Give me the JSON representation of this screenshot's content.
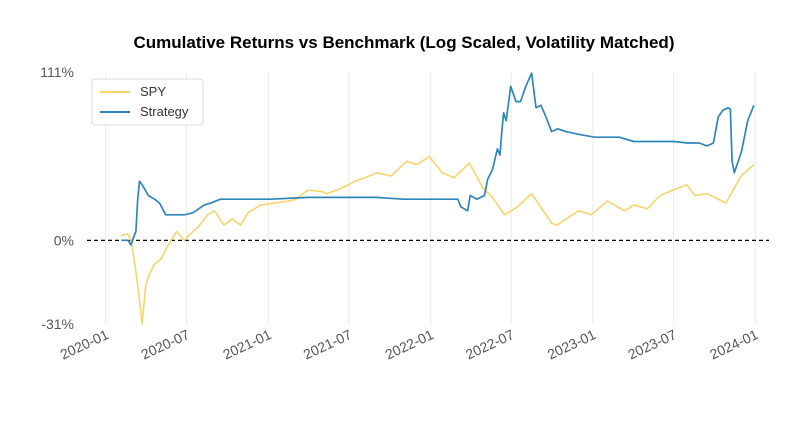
{
  "chart_data": {
    "type": "line",
    "title": "Cumulative Returns vs Benchmark (Log Scaled, Volatility Matched)",
    "xlabel": "",
    "ylabel": "",
    "y_scale": "log",
    "ylim": [
      -31,
      111
    ],
    "y_ticks": [
      {
        "value": 111,
        "label": "111%"
      },
      {
        "value": 0,
        "label": "0%"
      },
      {
        "value": -31,
        "label": "-31%"
      }
    ],
    "x_ticks": [
      "2020-01",
      "2020-07",
      "2021-01",
      "2021-07",
      "2022-01",
      "2022-07",
      "2023-01",
      "2023-07",
      "2024-01"
    ],
    "xlim": [
      "2019-11-20",
      "2024-02-01"
    ],
    "grid": "vertical",
    "baseline": 0,
    "legend_position": "top-left",
    "colors": {
      "SPY": "#f7d56a",
      "Strategy": "#2e86b9",
      "baseline": "#000000"
    },
    "series": [
      {
        "name": "SPY",
        "x": [
          "2020-02-05",
          "2020-02-19",
          "2020-02-27",
          "2020-03-09",
          "2020-03-16",
          "2020-03-23",
          "2020-03-31",
          "2020-04-08",
          "2020-04-20",
          "2020-05-04",
          "2020-05-18",
          "2020-06-08",
          "2020-06-26",
          "2020-07-10",
          "2020-07-27",
          "2020-08-17",
          "2020-09-02",
          "2020-09-23",
          "2020-10-12",
          "2020-10-30",
          "2020-11-16",
          "2020-12-15",
          "2021-01-15",
          "2021-02-15",
          "2021-03-04",
          "2021-03-31",
          "2021-05-03",
          "2021-05-12",
          "2021-06-15",
          "2021-07-15",
          "2021-08-16",
          "2021-09-02",
          "2021-10-04",
          "2021-11-08",
          "2021-12-01",
          "2021-12-29",
          "2022-01-27",
          "2022-02-23",
          "2022-03-29",
          "2022-04-29",
          "2022-05-20",
          "2022-06-16",
          "2022-07-15",
          "2022-08-16",
          "2022-09-30",
          "2022-10-12",
          "2022-11-30",
          "2022-12-28",
          "2023-02-02",
          "2023-03-13",
          "2023-04-03",
          "2023-05-03",
          "2023-06-01",
          "2023-06-30",
          "2023-07-31",
          "2023-08-18",
          "2023-09-15",
          "2023-10-27",
          "2023-11-30",
          "2023-12-29"
        ],
        "values": [
          2,
          3,
          0,
          -13,
          -22,
          -31,
          -18,
          -14,
          -10,
          -8,
          -3,
          4,
          0,
          3,
          6,
          12,
          14,
          7,
          10,
          7,
          13,
          17,
          18,
          19,
          20,
          25,
          24,
          23,
          26,
          30,
          33,
          35,
          33,
          42,
          40,
          45,
          35,
          32,
          41,
          26,
          21,
          12,
          16,
          23,
          8,
          7,
          14,
          12,
          19,
          14,
          17,
          15,
          22,
          25,
          28,
          22,
          23,
          18,
          33,
          40
        ]
      },
      {
        "name": "Strategy",
        "x": [
          "2020-02-05",
          "2020-02-20",
          "2020-02-27",
          "2020-03-05",
          "2020-03-09",
          "2020-03-13",
          "2020-03-17",
          "2020-03-23",
          "2020-04-06",
          "2020-04-20",
          "2020-05-01",
          "2020-05-15",
          "2020-06-05",
          "2020-06-26",
          "2020-07-15",
          "2020-08-10",
          "2020-08-25",
          "2020-09-15",
          "2020-10-15",
          "2020-12-01",
          "2021-01-04",
          "2021-04-01",
          "2021-06-01",
          "2021-09-01",
          "2021-11-01",
          "2022-01-03",
          "2022-03-03",
          "2022-03-10",
          "2022-03-25",
          "2022-03-31",
          "2022-04-15",
          "2022-05-02",
          "2022-05-09",
          "2022-05-20",
          "2022-05-31",
          "2022-06-06",
          "2022-06-10",
          "2022-06-14",
          "2022-06-20",
          "2022-06-30",
          "2022-07-12",
          "2022-07-22",
          "2022-08-03",
          "2022-08-16",
          "2022-08-26",
          "2022-09-06",
          "2022-09-16",
          "2022-09-30",
          "2022-10-14",
          "2022-11-01",
          "2022-12-01",
          "2023-01-05",
          "2023-03-01",
          "2023-04-03",
          "2023-06-01",
          "2023-07-03",
          "2023-08-01",
          "2023-08-28",
          "2023-09-15",
          "2023-09-29",
          "2023-10-10",
          "2023-10-20",
          "2023-11-01",
          "2023-11-06",
          "2023-11-10",
          "2023-11-15",
          "2023-12-01",
          "2023-12-15",
          "2023-12-29"
        ],
        "values": [
          0,
          0,
          -2,
          2,
          4,
          20,
          30,
          28,
          22,
          20,
          18,
          12,
          12,
          12,
          13,
          17,
          18,
          20,
          20,
          20,
          20,
          21,
          21,
          21,
          20,
          20,
          20,
          16,
          14,
          22,
          20,
          22,
          31,
          37,
          50,
          46,
          62,
          76,
          70,
          98,
          85,
          85,
          98,
          110,
          80,
          82,
          74,
          62,
          64,
          62,
          60,
          58,
          58,
          55,
          55,
          55,
          54,
          54,
          52,
          54,
          73,
          78,
          80,
          79,
          42,
          35,
          48,
          70,
          82
        ]
      }
    ]
  }
}
